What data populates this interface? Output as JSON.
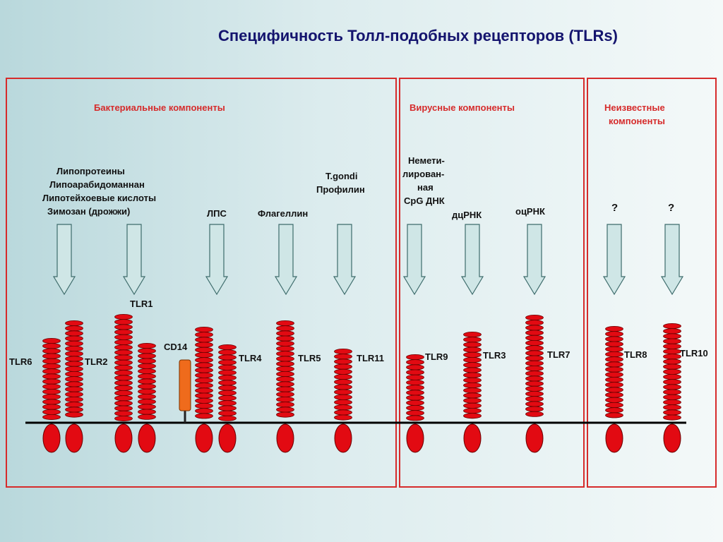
{
  "title": "Специфичность Толл-подобных рецепторов (TLRs)",
  "categories": {
    "bacterial": "Бактериальные компоненты",
    "viral": "Вирусные компоненты",
    "unknown_line1": "Неизвестные",
    "unknown_line2": "компоненты"
  },
  "ligands": {
    "lipo_1": "Липопротеины",
    "lipo_2": "Липоарабидоманнан",
    "lipo_3": "Липотейхоевые кислоты",
    "lipo_4": "Зимозан (дрожжи)",
    "lps": "ЛПС",
    "flagellin": "Флагеллин",
    "tgondi_1": "T.gondi",
    "tgondi_2": "Профилин",
    "cpg_1": "Немети-",
    "cpg_2": "лирован-",
    "cpg_3": "ная",
    "cpg_4": "CpG ДНК",
    "dsrna": "дцРНК",
    "ssrna": "оцРНК",
    "unknown_a": "?",
    "unknown_b": "?"
  },
  "receptors": {
    "tlr6": "TLR6",
    "tlr2": "TLR2",
    "tlr1": "TLR1",
    "cd14": "CD14",
    "tlr4": "TLR4",
    "tlr5": "TLR5",
    "tlr11": "TLR11",
    "tlr9": "TLR9",
    "tlr3": "TLR3",
    "tlr7": "TLR7",
    "tlr8": "TLR8",
    "tlr10": "TLR10"
  },
  "colors": {
    "receptor_red": "#e20a12",
    "panel_border": "#d62b2b",
    "arrow_fill": "#cfe6e6",
    "cd14_orange": "#ef6b1c",
    "title_navy": "#14146e"
  }
}
